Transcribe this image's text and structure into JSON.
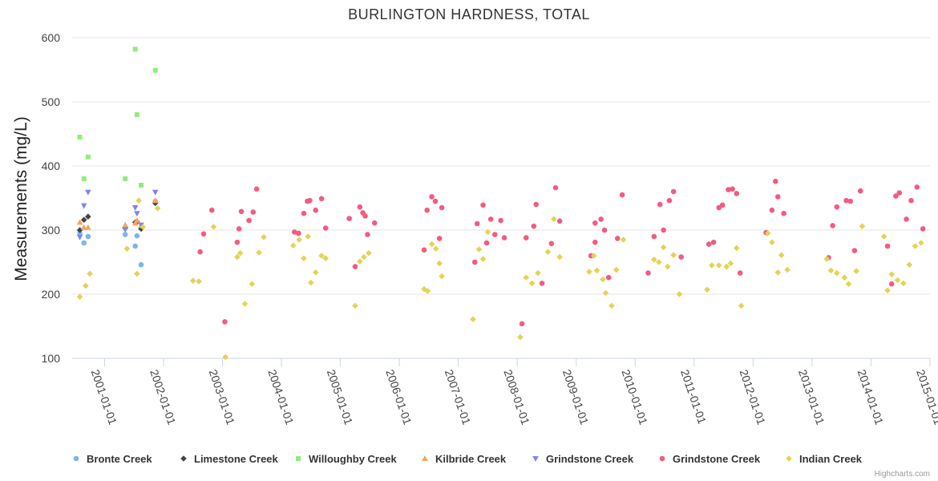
{
  "chart_data": {
    "type": "scatter",
    "title": "BURLINGTON HARDNESS, TOTAL",
    "xlabel": "",
    "ylabel": "Measurements (mg/L)",
    "ylim": [
      100,
      600
    ],
    "yticks": [
      100,
      200,
      300,
      400,
      500,
      600
    ],
    "xlim": [
      2000.45,
      2015.0
    ],
    "xticks": [
      {
        "label": "2001-01-01",
        "year": 2001
      },
      {
        "label": "2002-01-01",
        "year": 2002
      },
      {
        "label": "2003-01-01",
        "year": 2003
      },
      {
        "label": "2004-01-01",
        "year": 2004
      },
      {
        "label": "2005-01-01",
        "year": 2005
      },
      {
        "label": "2006-01-01",
        "year": 2006
      },
      {
        "label": "2007-01-01",
        "year": 2007
      },
      {
        "label": "2008-01-01",
        "year": 2008
      },
      {
        "label": "2009-01-01",
        "year": 2009
      },
      {
        "label": "2010-01-01",
        "year": 2010
      },
      {
        "label": "2011-01-01",
        "year": 2011
      },
      {
        "label": "2012-01-01",
        "year": 2012
      },
      {
        "label": "2013-01-01",
        "year": 2013
      },
      {
        "label": "2014-01-01",
        "year": 2014
      },
      {
        "label": "2015-01-01",
        "year": 2015
      }
    ],
    "grid": true,
    "legend_position": "bottom",
    "series": [
      {
        "name": "Bronte Creek",
        "color": "#7cb5ec",
        "marker": "circle",
        "points": [
          [
            2000.58,
            295
          ],
          [
            2000.65,
            280
          ],
          [
            2000.72,
            290
          ],
          [
            2001.35,
            293
          ],
          [
            2001.52,
            275
          ],
          [
            2001.55,
            291
          ],
          [
            2001.62,
            246
          ],
          [
            2001.86,
            345
          ]
        ]
      },
      {
        "name": "Limestone Creek",
        "color": "#434348",
        "marker": "diamond",
        "points": [
          [
            2000.58,
            300
          ],
          [
            2000.65,
            316
          ],
          [
            2000.72,
            321
          ],
          [
            2001.35,
            303
          ],
          [
            2001.52,
            312
          ],
          [
            2001.55,
            313
          ],
          [
            2001.62,
            302
          ],
          [
            2001.86,
            342
          ]
        ]
      },
      {
        "name": "Willoughby Creek",
        "color": "#90ed7d",
        "marker": "square",
        "points": [
          [
            2000.58,
            445
          ],
          [
            2000.65,
            380
          ],
          [
            2000.72,
            414
          ],
          [
            2001.35,
            380
          ],
          [
            2001.52,
            582
          ],
          [
            2001.55,
            480
          ],
          [
            2001.62,
            370
          ],
          [
            2001.86,
            549
          ]
        ]
      },
      {
        "name": "Kilbride Creek",
        "color": "#f7a35c",
        "marker": "triangle",
        "points": [
          [
            2000.58,
            312
          ],
          [
            2000.65,
            304
          ],
          [
            2000.72,
            304
          ],
          [
            2001.35,
            308
          ],
          [
            2001.52,
            311
          ],
          [
            2001.55,
            315
          ],
          [
            2001.62,
            307
          ],
          [
            2001.86,
            346
          ]
        ]
      },
      {
        "name": "Grindstone Creek",
        "color": "#8085e9",
        "marker": "triangle-down",
        "points": [
          [
            2000.58,
            289
          ],
          [
            2000.65,
            338
          ],
          [
            2000.72,
            359
          ],
          [
            2001.35,
            301
          ],
          [
            2001.52,
            335
          ],
          [
            2001.55,
            326
          ],
          [
            2001.62,
            308
          ],
          [
            2001.86,
            359
          ]
        ]
      },
      {
        "name": "Grindstone Creek",
        "color": "#f15c80",
        "marker": "circle",
        "points": [
          [
            2002.62,
            266
          ],
          [
            2002.68,
            294
          ],
          [
            2002.82,
            331
          ],
          [
            2003.04,
            157
          ],
          [
            2003.25,
            281
          ],
          [
            2003.28,
            302
          ],
          [
            2003.32,
            329
          ],
          [
            2003.45,
            315
          ],
          [
            2003.52,
            328
          ],
          [
            2003.58,
            364
          ],
          [
            2004.22,
            297
          ],
          [
            2004.29,
            295
          ],
          [
            2004.38,
            326
          ],
          [
            2004.44,
            345
          ],
          [
            2004.48,
            346
          ],
          [
            2004.58,
            331
          ],
          [
            2004.68,
            349
          ],
          [
            2004.75,
            303
          ],
          [
            2005.15,
            318
          ],
          [
            2005.25,
            243
          ],
          [
            2005.33,
            336
          ],
          [
            2005.38,
            327
          ],
          [
            2005.42,
            322
          ],
          [
            2005.46,
            293
          ],
          [
            2005.58,
            311
          ],
          [
            2006.42,
            269
          ],
          [
            2006.47,
            331
          ],
          [
            2006.55,
            352
          ],
          [
            2006.61,
            345
          ],
          [
            2006.68,
            287
          ],
          [
            2006.72,
            335
          ],
          [
            2007.28,
            250
          ],
          [
            2007.32,
            310
          ],
          [
            2007.42,
            339
          ],
          [
            2007.48,
            280
          ],
          [
            2007.55,
            317
          ],
          [
            2007.62,
            293
          ],
          [
            2007.72,
            315
          ],
          [
            2007.78,
            288
          ],
          [
            2008.08,
            154
          ],
          [
            2008.15,
            288
          ],
          [
            2008.28,
            306
          ],
          [
            2008.32,
            340
          ],
          [
            2008.42,
            217
          ],
          [
            2008.58,
            279
          ],
          [
            2008.65,
            366
          ],
          [
            2008.72,
            314
          ],
          [
            2009.25,
            260
          ],
          [
            2009.32,
            281
          ],
          [
            2009.32,
            311
          ],
          [
            2009.42,
            317
          ],
          [
            2009.48,
            300
          ],
          [
            2009.55,
            226
          ],
          [
            2009.7,
            287
          ],
          [
            2009.78,
            355
          ],
          [
            2010.22,
            233
          ],
          [
            2010.32,
            290
          ],
          [
            2010.42,
            340
          ],
          [
            2010.48,
            300
          ],
          [
            2010.58,
            346
          ],
          [
            2010.65,
            360
          ],
          [
            2010.78,
            258
          ],
          [
            2011.25,
            278
          ],
          [
            2011.33,
            281
          ],
          [
            2011.42,
            335
          ],
          [
            2011.48,
            339
          ],
          [
            2011.58,
            363
          ],
          [
            2011.65,
            364
          ],
          [
            2011.72,
            357
          ],
          [
            2011.78,
            233
          ],
          [
            2012.22,
            296
          ],
          [
            2012.32,
            331
          ],
          [
            2012.38,
            376
          ],
          [
            2012.42,
            352
          ],
          [
            2012.52,
            326
          ],
          [
            2013.28,
            257
          ],
          [
            2013.35,
            307
          ],
          [
            2013.42,
            336
          ],
          [
            2013.58,
            346
          ],
          [
            2013.65,
            345
          ],
          [
            2013.72,
            268
          ],
          [
            2013.82,
            361
          ],
          [
            2014.28,
            275
          ],
          [
            2014.35,
            216
          ],
          [
            2014.42,
            353
          ],
          [
            2014.48,
            358
          ],
          [
            2014.6,
            317
          ],
          [
            2014.68,
            346
          ],
          [
            2014.78,
            367
          ],
          [
            2014.88,
            302
          ]
        ]
      },
      {
        "name": "Indian Creek",
        "color": "#e4d354",
        "marker": "diamond",
        "points": [
          [
            2000.58,
            196
          ],
          [
            2000.68,
            213
          ],
          [
            2000.75,
            232
          ],
          [
            2001.38,
            271
          ],
          [
            2001.55,
            232
          ],
          [
            2001.58,
            346
          ],
          [
            2001.65,
            305
          ],
          [
            2001.9,
            334
          ],
          [
            2002.5,
            221
          ],
          [
            2002.6,
            220
          ],
          [
            2002.85,
            305
          ],
          [
            2003.05,
            102
          ],
          [
            2003.25,
            258
          ],
          [
            2003.3,
            264
          ],
          [
            2003.38,
            185
          ],
          [
            2003.5,
            216
          ],
          [
            2003.62,
            265
          ],
          [
            2003.7,
            289
          ],
          [
            2004.2,
            276
          ],
          [
            2004.3,
            285
          ],
          [
            2004.38,
            256
          ],
          [
            2004.45,
            290
          ],
          [
            2004.5,
            218
          ],
          [
            2004.58,
            234
          ],
          [
            2004.68,
            260
          ],
          [
            2004.75,
            256
          ],
          [
            2005.25,
            182
          ],
          [
            2005.33,
            251
          ],
          [
            2005.4,
            258
          ],
          [
            2005.48,
            264
          ],
          [
            2006.42,
            208
          ],
          [
            2006.48,
            205
          ],
          [
            2006.55,
            278
          ],
          [
            2006.62,
            271
          ],
          [
            2006.68,
            248
          ],
          [
            2006.72,
            228
          ],
          [
            2007.25,
            161
          ],
          [
            2007.35,
            270
          ],
          [
            2007.42,
            255
          ],
          [
            2007.5,
            297
          ],
          [
            2008.05,
            133
          ],
          [
            2008.15,
            226
          ],
          [
            2008.25,
            217
          ],
          [
            2008.35,
            233
          ],
          [
            2008.52,
            266
          ],
          [
            2008.62,
            317
          ],
          [
            2008.72,
            258
          ],
          [
            2009.22,
            235
          ],
          [
            2009.3,
            260
          ],
          [
            2009.35,
            237
          ],
          [
            2009.45,
            223
          ],
          [
            2009.5,
            202
          ],
          [
            2009.6,
            182
          ],
          [
            2009.68,
            238
          ],
          [
            2009.8,
            285
          ],
          [
            2010.32,
            254
          ],
          [
            2010.4,
            250
          ],
          [
            2010.48,
            273
          ],
          [
            2010.55,
            243
          ],
          [
            2010.65,
            261
          ],
          [
            2010.75,
            200
          ],
          [
            2011.22,
            207
          ],
          [
            2011.3,
            245
          ],
          [
            2011.42,
            245
          ],
          [
            2011.55,
            243
          ],
          [
            2011.62,
            248
          ],
          [
            2011.72,
            272
          ],
          [
            2011.8,
            182
          ],
          [
            2012.25,
            295
          ],
          [
            2012.32,
            281
          ],
          [
            2012.42,
            234
          ],
          [
            2012.48,
            261
          ],
          [
            2012.58,
            238
          ],
          [
            2013.25,
            255
          ],
          [
            2013.32,
            237
          ],
          [
            2013.42,
            233
          ],
          [
            2013.55,
            226
          ],
          [
            2013.62,
            216
          ],
          [
            2013.75,
            236
          ],
          [
            2013.85,
            306
          ],
          [
            2014.22,
            290
          ],
          [
            2014.28,
            206
          ],
          [
            2014.35,
            231
          ],
          [
            2014.45,
            222
          ],
          [
            2014.55,
            217
          ],
          [
            2014.65,
            246
          ],
          [
            2014.75,
            275
          ],
          [
            2014.85,
            280
          ]
        ]
      }
    ],
    "credits": "Highcharts.com"
  }
}
